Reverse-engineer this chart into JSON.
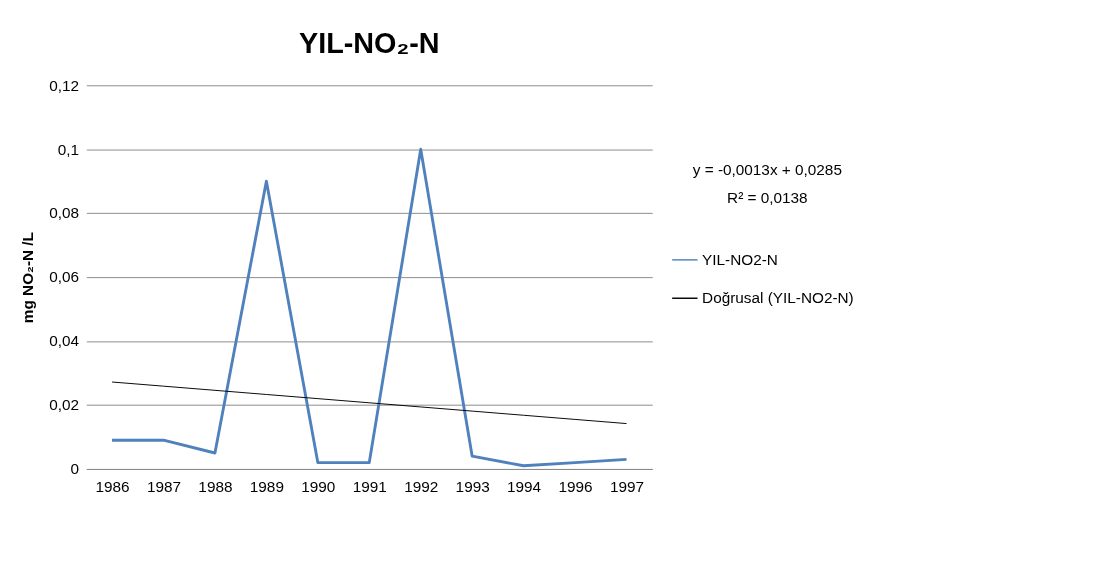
{
  "chart_data": {
    "type": "line",
    "title": "YIL-NO₂-N",
    "ylabel": "mg NO₂-N /L",
    "categories": [
      "1986",
      "1987",
      "1988",
      "1989",
      "1990",
      "1991",
      "1992",
      "1993",
      "1994",
      "1996",
      "1997"
    ],
    "series": [
      {
        "name": "YIL-NO2-N",
        "color": "#4f81bd",
        "values": [
          0.009,
          0.009,
          0.005,
          0.09,
          0.002,
          0.002,
          0.1,
          0.004,
          0.001,
          0.002,
          0.003
        ]
      },
      {
        "name": "Doğrusal (YIL-NO2-N)",
        "color": "#000000",
        "values": [
          0.0272,
          0.0259,
          0.0246,
          0.0233,
          0.022,
          0.0207,
          0.0194,
          0.0181,
          0.0168,
          0.0155,
          0.0142
        ]
      }
    ],
    "ylim": [
      0,
      0.12
    ],
    "yticks": [
      0,
      {
        "value": 0.02,
        "label": "0,02"
      },
      {
        "value": 0.04,
        "label": "0,04"
      },
      {
        "value": 0.06,
        "label": "0,06"
      },
      {
        "value": 0.08,
        "label": "0,08"
      },
      {
        "value": 0.1,
        "label": "0,1"
      },
      {
        "value": 0.12,
        "label": "0,12"
      }
    ],
    "grid": "y",
    "legend": "right",
    "annotations": [
      "y = -0,0013x + 0,0285",
      "R² = 0,0138"
    ]
  }
}
